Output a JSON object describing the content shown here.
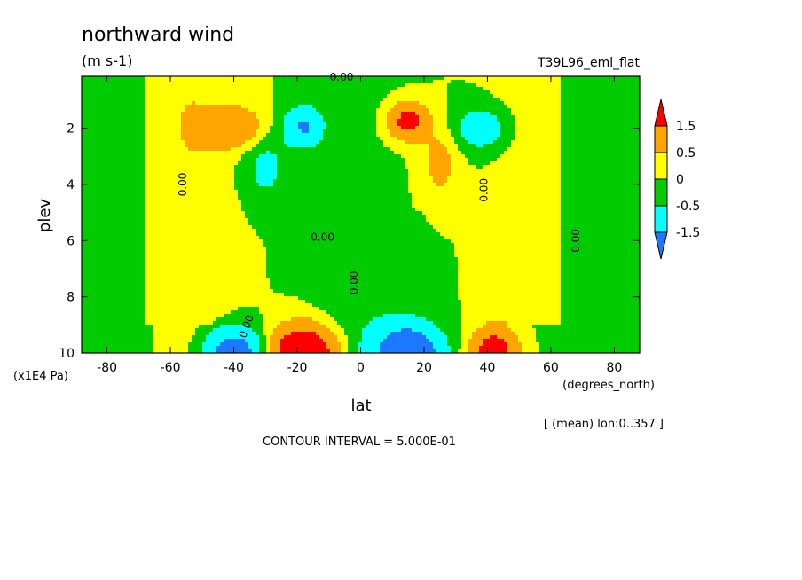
{
  "chart_data": {
    "type": "heatmap",
    "title": "northward wind",
    "units": "(m s-1)",
    "dataset_label": "T39L96_eml_flat",
    "xlabel": "lat",
    "x_units": "(degrees_north)",
    "ylabel": "plev",
    "y_units": "(x1E4 Pa)",
    "xlim": [
      -88,
      88
    ],
    "ylim": [
      10,
      0.15
    ],
    "x_ticks": [
      -80,
      -60,
      -40,
      -20,
      0,
      20,
      40,
      60,
      80
    ],
    "y_ticks": [
      2,
      4,
      6,
      8,
      10
    ],
    "footnote": "[ (mean) lon:0..357 ]",
    "contour_interval_text": "CONTOUR INTERVAL = 5.000E-01",
    "colorbar": {
      "labels": [
        "1.5",
        "0.5",
        "0",
        "-0.5",
        "-1.5"
      ],
      "colors": [
        "#ff0000",
        "#ffa500",
        "#ffff00",
        "#00cc00",
        "#00ffff",
        "#1e78ff"
      ],
      "levels": [
        -1.5,
        -0.5,
        0,
        0.5,
        1.5
      ]
    },
    "contour_labels": [
      {
        "text": "0.00",
        "lat": -55,
        "plev": 4.0,
        "rotate": -90
      },
      {
        "text": "0.00",
        "lat": -6,
        "plev": 0.3,
        "rotate": 0
      },
      {
        "text": "0.00",
        "lat": -12,
        "plev": 6.0,
        "rotate": 0
      },
      {
        "text": "0.00",
        "lat": -1,
        "plev": 7.5,
        "rotate": -90
      },
      {
        "text": "0.00",
        "lat": 40,
        "plev": 4.2,
        "rotate": -90
      },
      {
        "text": "0.00",
        "lat": 69,
        "plev": 6.0,
        "rotate": -90
      },
      {
        "text": "0.00",
        "lat": -35,
        "plev": 9.1,
        "rotate": -70
      }
    ],
    "features": [
      {
        "lat": -40,
        "plev": 1.95,
        "amp": 1.3,
        "sx": 9,
        "sy": 0.75
      },
      {
        "lat": -18,
        "plev": 1.95,
        "amp": -1.6,
        "sx": 6,
        "sy": 0.7
      },
      {
        "lat": -30,
        "plev": 3.4,
        "amp": -0.7,
        "sx": 7,
        "sy": 1.2
      },
      {
        "lat": 15,
        "plev": 1.75,
        "amp": 2.0,
        "sx": 6,
        "sy": 0.65
      },
      {
        "lat": 25,
        "plev": 3.2,
        "amp": 0.75,
        "sx": 6,
        "sy": 1.3
      },
      {
        "lat": 38,
        "plev": 2.0,
        "amp": -1.0,
        "sx": 9,
        "sy": 0.8
      },
      {
        "lat": -40,
        "plev": 10.0,
        "amp": -2.4,
        "sx": 9,
        "sy": 0.85
      },
      {
        "lat": -18,
        "plev": 10.0,
        "amp": 3.2,
        "sx": 10,
        "sy": 0.95
      },
      {
        "lat": 15,
        "plev": 10.0,
        "amp": -3.0,
        "sx": 10,
        "sy": 0.95
      },
      {
        "lat": 42,
        "plev": 10.0,
        "amp": 2.4,
        "sx": 7,
        "sy": 0.85
      }
    ]
  }
}
